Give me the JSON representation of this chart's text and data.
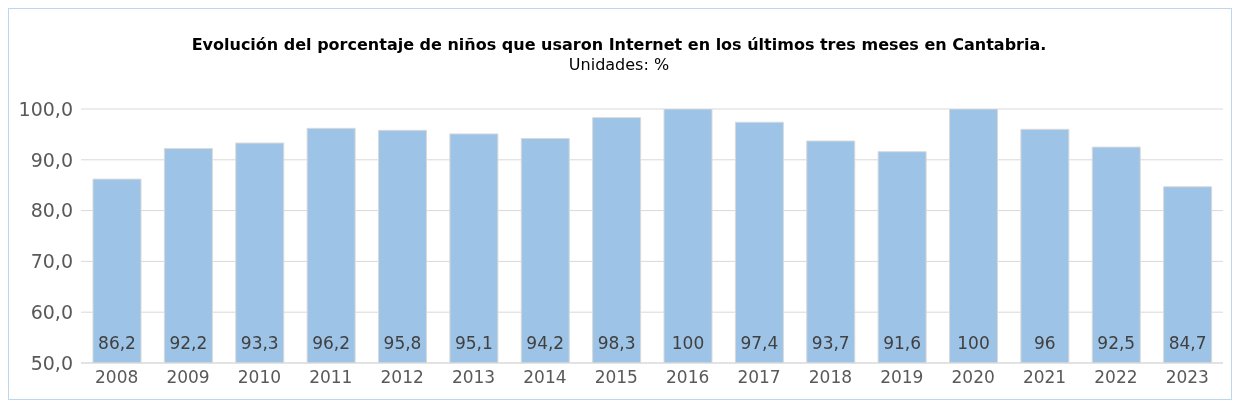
{
  "chart_data": {
    "type": "bar",
    "title": "Evolución del porcentaje de niños que usaron Internet en los últimos tres meses en Cantabria.",
    "subtitle": "Unidades: %",
    "categories": [
      "2008",
      "2009",
      "2010",
      "2011",
      "2012",
      "2013",
      "2014",
      "2015",
      "2016",
      "2017",
      "2018",
      "2019",
      "2020",
      "2021",
      "2022",
      "2023"
    ],
    "values": [
      86.2,
      92.2,
      93.3,
      96.2,
      95.8,
      95.1,
      94.2,
      98.3,
      100,
      97.4,
      93.7,
      91.6,
      100,
      96,
      92.5,
      84.7
    ],
    "color": "#9dc3e6",
    "ylim": [
      50,
      100
    ],
    "yticks": [
      {
        "value": 50,
        "label": "50,0"
      },
      {
        "value": 60,
        "label": "60,0"
      },
      {
        "value": 70,
        "label": "70,0"
      },
      {
        "value": 80,
        "label": "80,0"
      },
      {
        "value": 90,
        "label": "90,0"
      },
      {
        "value": 100,
        "label": "100,0"
      }
    ],
    "value_labels": [
      "86,2",
      "92,2",
      "93,3",
      "96,2",
      "95,8",
      "95,1",
      "94,2",
      "98,3",
      "100",
      "97,4",
      "93,7",
      "91,6",
      "100",
      "96",
      "92,5",
      "84,7"
    ],
    "grid": "y"
  }
}
